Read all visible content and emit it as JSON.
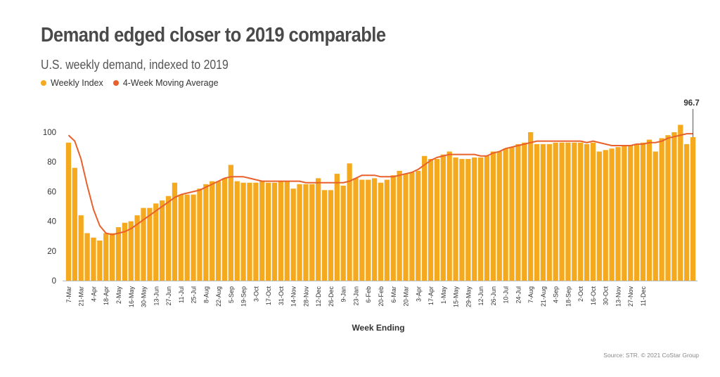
{
  "header": {
    "title": "Demand edged closer to 2019 comparable",
    "subtitle": "U.S. weekly demand, indexed to 2019"
  },
  "legend": {
    "items": [
      {
        "label": "Weekly Index",
        "color": "#F5A91F"
      },
      {
        "label": "4-Week Moving Average",
        "color": "#E8612C"
      }
    ]
  },
  "colors": {
    "bar": "#F5A91F",
    "line": "#E8612C",
    "text": "#333333"
  },
  "footer": {
    "source": "Source: STR. © 2021 CoStar Group"
  },
  "chart_data": {
    "type": "bar",
    "title": "Demand edged closer to 2019 comparable",
    "subtitle": "U.S. weekly demand, indexed to 2019",
    "xlabel": "Week Ending",
    "ylabel": "",
    "ylim": [
      0,
      105
    ],
    "yticks": [
      0,
      20,
      40,
      60,
      80,
      100
    ],
    "x_tick_labels": [
      "7-Mar",
      "21-Mar",
      "4-Apr",
      "18-Apr",
      "2-May",
      "16-May",
      "30-May",
      "13-Jun",
      "27-Jun",
      "11-Jul",
      "25-Jul",
      "8-Aug",
      "22-Aug",
      "5-Sep",
      "19-Sep",
      "3-Oct",
      "17-Oct",
      "31-Oct",
      "14-Nov",
      "28-Nov",
      "12-Dec",
      "26-Dec",
      "9-Jan",
      "23-Jan",
      "6-Feb",
      "20-Feb",
      "6-Mar",
      "20-Mar",
      "3-Apr",
      "17-Apr",
      "1-May",
      "15-May",
      "29-May",
      "12-Jun",
      "26-Jun",
      "10-Jul",
      "24-Jul",
      "7-Aug",
      "21-Aug",
      "4-Sep",
      "18-Sep",
      "2-Oct",
      "16-Oct",
      "30-Oct",
      "13-Nov",
      "27-Nov",
      "11-Dec"
    ],
    "annotation": {
      "label": "96.7",
      "value": 96.7
    },
    "series": [
      {
        "name": "Weekly Index",
        "type": "bar",
        "values": [
          93,
          76,
          44,
          32,
          29,
          27,
          32,
          32,
          36,
          39,
          40,
          44,
          49,
          49,
          52,
          54,
          57,
          66,
          58,
          58,
          58,
          62,
          65,
          67,
          67,
          69,
          78,
          67,
          66,
          66,
          66,
          67,
          66,
          66,
          67,
          67,
          62,
          65,
          65,
          65,
          69,
          61,
          61,
          72,
          64,
          79,
          69,
          68,
          68,
          69,
          66,
          68,
          71,
          74,
          72,
          73,
          74,
          84,
          82,
          82,
          85,
          87,
          83,
          82,
          82,
          83,
          83,
          84,
          87,
          87,
          89,
          90,
          92,
          93,
          100,
          92,
          92,
          92,
          93,
          93,
          93,
          93,
          93,
          92,
          93,
          87,
          88,
          89,
          90,
          91,
          91,
          92,
          93,
          95,
          87,
          96,
          98,
          100,
          105,
          92,
          96.7
        ]
      },
      {
        "name": "4-Week Moving Average",
        "type": "line",
        "values": [
          98,
          94,
          82,
          64,
          48,
          37,
          32,
          31,
          32,
          33,
          35,
          38,
          41,
          44,
          47,
          50,
          53,
          56,
          58,
          59,
          60,
          61,
          63,
          65,
          67,
          69,
          70,
          70,
          70,
          69,
          68,
          67,
          67,
          67,
          67,
          67,
          67,
          67,
          66,
          66,
          66,
          66,
          66,
          66,
          66,
          67,
          69,
          71,
          71,
          71,
          70,
          70,
          70,
          71,
          72,
          73,
          75,
          78,
          81,
          83,
          84,
          85,
          85,
          85,
          85,
          85,
          84,
          84,
          86,
          87,
          89,
          90,
          91,
          92,
          93,
          94,
          94,
          94,
          94,
          94,
          94,
          94,
          94,
          93,
          94,
          93,
          92,
          91,
          91,
          91,
          91,
          92,
          92,
          93,
          93,
          94,
          96,
          97,
          98,
          99,
          99
        ]
      }
    ]
  }
}
